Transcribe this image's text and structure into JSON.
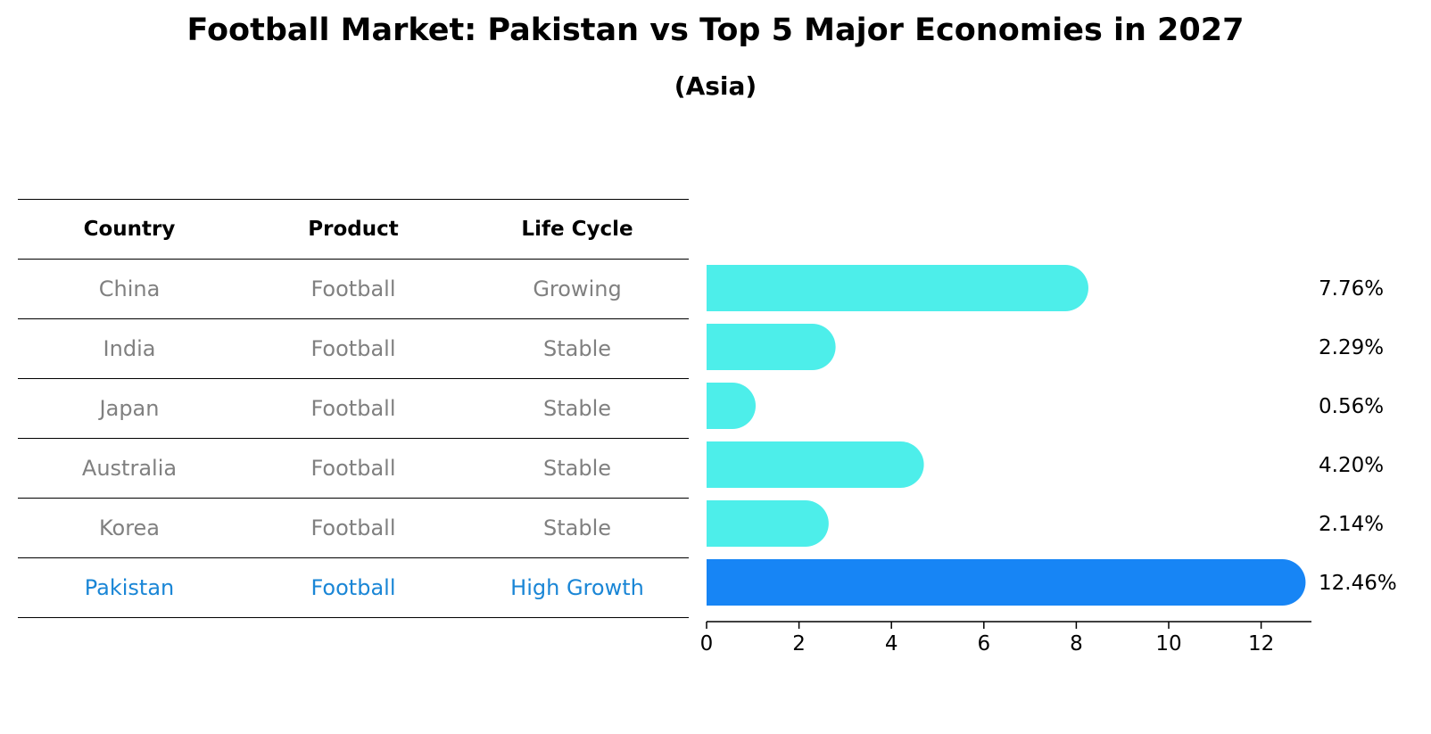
{
  "title": "Football Market: Pakistan vs Top 5 Major Economies in 2027",
  "subtitle": "(Asia)",
  "table": {
    "headers": [
      "Country",
      "Product",
      "Life Cycle"
    ],
    "rows": [
      [
        "China",
        "Football",
        "Growing"
      ],
      [
        "India",
        "Football",
        "Stable"
      ],
      [
        "Japan",
        "Football",
        "Stable"
      ],
      [
        "Australia",
        "Football",
        "Stable"
      ],
      [
        "Korea",
        "Football",
        "Stable"
      ],
      [
        "Pakistan",
        "Football",
        "High Growth"
      ]
    ]
  },
  "chart_data": {
    "type": "bar",
    "orientation": "horizontal",
    "categories": [
      "China",
      "India",
      "Japan",
      "Australia",
      "Korea",
      "Pakistan"
    ],
    "values": [
      7.76,
      2.29,
      0.56,
      4.2,
      2.14,
      12.46
    ],
    "value_labels": [
      "7.76%",
      "2.29%",
      "0.56%",
      "4.20%",
      "2.14%",
      "12.46%"
    ],
    "highlight": "Pakistan",
    "xlim": [
      0,
      13.1
    ],
    "xticks": [
      0,
      2,
      4,
      6,
      8,
      10,
      12
    ],
    "grid": false,
    "colors": {
      "default": "#4deeea",
      "highlight": "#1785f5"
    }
  },
  "colors": {
    "muted_text": "#808080",
    "highlight_text": "#1a86d6"
  }
}
